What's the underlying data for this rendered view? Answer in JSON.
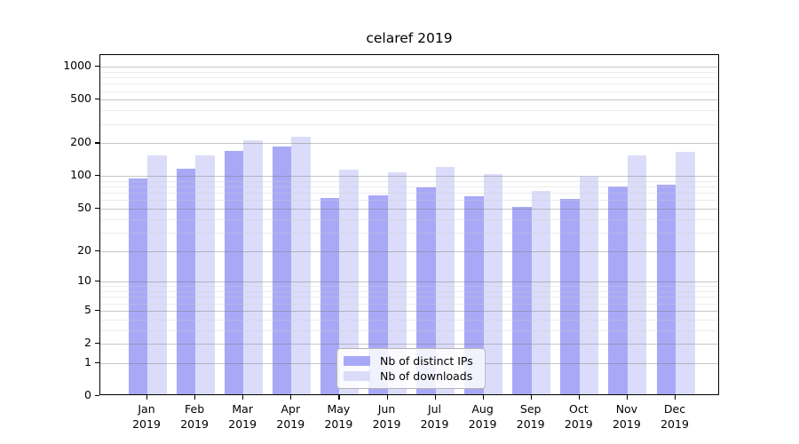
{
  "title": "celaref 2019",
  "legend": {
    "items": [
      {
        "label": "Nb of distinct IPs",
        "color": "#a8a9f6"
      },
      {
        "label": "Nb of downloads",
        "color": "#dcdcfa"
      }
    ]
  },
  "chart_data": {
    "type": "bar",
    "title": "celaref 2019",
    "x_months": [
      "Jan",
      "Feb",
      "Mar",
      "Apr",
      "May",
      "Jun",
      "Jul",
      "Aug",
      "Sep",
      "Oct",
      "Nov",
      "Dec"
    ],
    "x_year": "2019",
    "series": [
      {
        "name": "Nb of distinct IPs",
        "color": "#a8a9f6",
        "values": [
          92,
          112,
          163,
          180,
          61,
          64,
          76,
          63,
          50,
          59,
          77,
          80
        ]
      },
      {
        "name": "Nb of downloads",
        "color": "#dcdcfa",
        "values": [
          148,
          150,
          204,
          221,
          111,
          105,
          116,
          101,
          70,
          95,
          149,
          162
        ]
      }
    ],
    "y_scale": "log10(value+1)",
    "y_ticks": [
      0,
      1,
      2,
      5,
      10,
      20,
      50,
      100,
      200,
      500,
      1000
    ],
    "y_minor_gridlines": [
      3,
      4,
      6,
      7,
      8,
      9,
      30,
      40,
      60,
      70,
      80,
      90,
      300,
      400,
      600,
      700,
      800,
      900
    ],
    "ylim": [
      0,
      1300
    ],
    "grid": "on",
    "legend_position": "lower center"
  },
  "colors": {
    "background": "#ffffff",
    "plot_border": "#000000",
    "major_grid": "#b4b4b4",
    "minor_grid": "#e6e6e6",
    "text": "#000000"
  }
}
